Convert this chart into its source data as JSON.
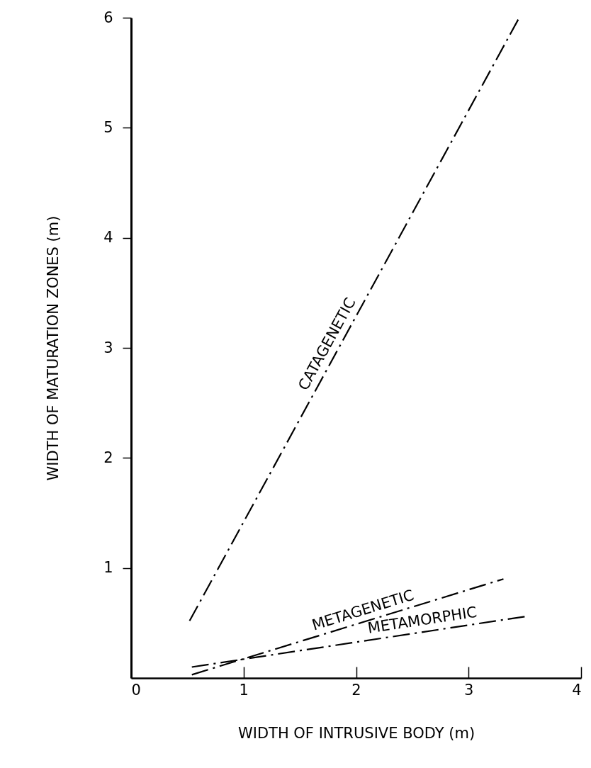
{
  "chart_data": {
    "type": "line",
    "xlabel": "WIDTH OF INTRUSIVE BODY (m)",
    "ylabel": "WIDTH OF MATURATION ZONES (m)",
    "xlim": [
      0,
      4
    ],
    "ylim": [
      0,
      6
    ],
    "xticks": [
      0,
      1,
      2,
      3,
      4
    ],
    "yticks": [
      1,
      2,
      3,
      4,
      5,
      6
    ],
    "grid": false,
    "legend": false,
    "line_style": "dashed",
    "marker": "none",
    "series": [
      {
        "name": "CATAGENETIC",
        "color": "#000000",
        "x": [
          0.52,
          3.45
        ],
        "values": [
          0.52,
          6.0
        ]
      },
      {
        "name": "METAGENETIC",
        "color": "#000000",
        "x": [
          0.54,
          3.31
        ],
        "values": [
          0.03,
          0.9
        ]
      },
      {
        "name": "METAMORPHIC",
        "color": "#000000",
        "x": [
          0.54,
          3.51
        ],
        "values": [
          0.1,
          0.56
        ]
      }
    ]
  }
}
